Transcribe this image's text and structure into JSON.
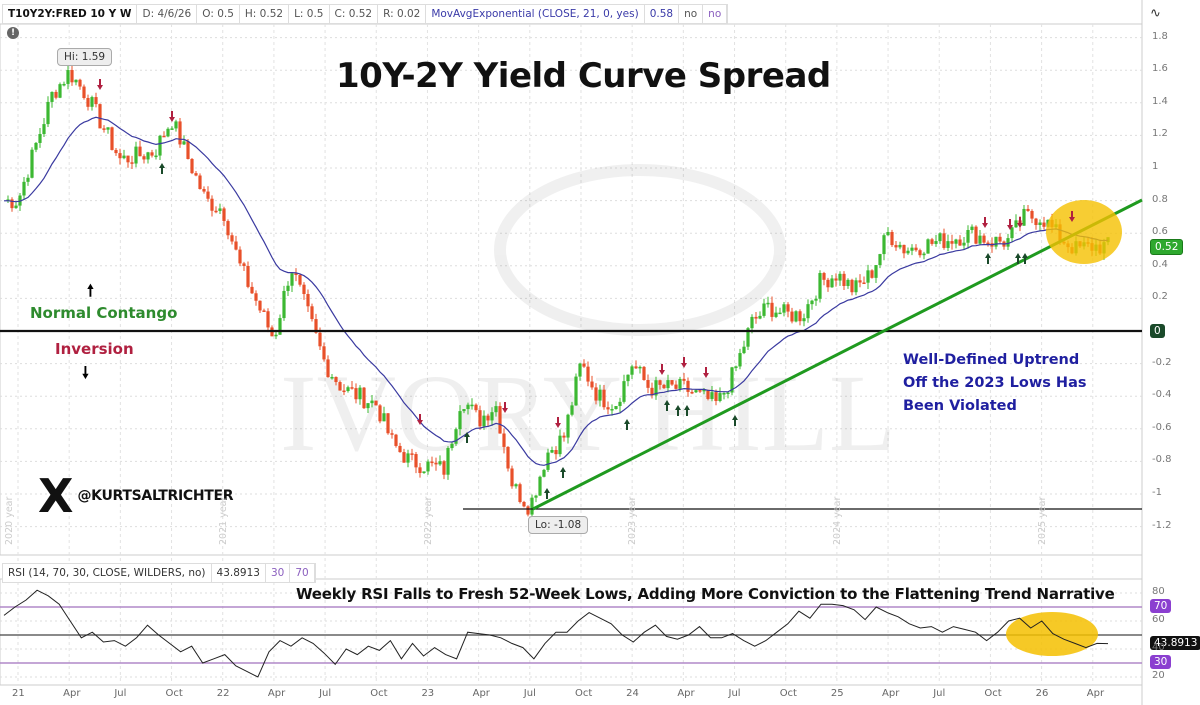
{
  "header": {
    "symbol": "T10Y2Y:FRED 10 Y W",
    "date": "D: 4/6/26",
    "open": "O: 0.5",
    "high": "H: 0.52",
    "low": "L: 0.5",
    "close": "C: 0.52",
    "range": "R: 0.02",
    "study": "MovAvgExponential (CLOSE, 21, 0, yes)",
    "study_value": "0.58",
    "flag1": "no",
    "flag2": "no"
  },
  "rsi_header": {
    "study": "RSI (14, 70, 30, CLOSE, WILDERS, no)",
    "value": "43.8913",
    "os": "30",
    "ob": "70"
  },
  "annotations": {
    "title": "10Y-2Y Yield Curve Spread",
    "normal": "Normal Contango",
    "inversion": "Inversion",
    "uptrend_line1": "Well-Defined Uptrend",
    "uptrend_line2": "Off the 2023 Lows Has",
    "uptrend_line3": "Been Violated",
    "rsi_note": "Weekly RSI Falls to Fresh 52-Week Lows, Adding More Conviction to the Flattening Trend Narrative",
    "handle": "@KURTSALTRICHTER",
    "x_logo": "X",
    "hi_label": "Hi: 1.59",
    "lo_label": "Lo: -1.08",
    "last_price": "0.52",
    "zero_tag": "0",
    "rsi_last": "43.8913",
    "rsi_ob_tag": "70",
    "rsi_os_tag": "30"
  },
  "colors": {
    "up": "#3cb832",
    "down": "#e8502a",
    "ema": "#3a3aa0",
    "trend": "#1f9a1f",
    "highlight": "#f5c000",
    "rsi_band": "#b088c8"
  },
  "chart_data": [
    {
      "type": "candlestick",
      "title": "10Y-2Y Yield Curve Spread",
      "symbol": "T10Y2Y:FRED",
      "interval": "Weekly",
      "ylim": [
        -1.3,
        1.9
      ],
      "y_ticks": [
        1.8,
        1.6,
        1.4,
        1.2,
        1,
        0.8,
        0.6,
        0.4,
        0.2,
        0,
        -0.2,
        -0.4,
        -0.6,
        -0.8,
        -1,
        -1.2
      ],
      "x_ticks": [
        "21",
        "Apr",
        "Jul",
        "Oct",
        "22",
        "Apr",
        "Jul",
        "Oct",
        "23",
        "Apr",
        "Jul",
        "Oct",
        "24",
        "Apr",
        "Jul",
        "Oct",
        "25",
        "Apr",
        "Jul",
        "Oct",
        "26",
        "Apr"
      ],
      "year_markers": [
        "2020 year",
        "2021 year",
        "2022 year",
        "2023 year",
        "2024 year",
        "2025 year"
      ],
      "approx_close_path": [
        {
          "t": "2021-01",
          "v": 0.8
        },
        {
          "t": "2021-03",
          "v": 1.45
        },
        {
          "t": "2021-04",
          "v": 1.59
        },
        {
          "t": "2021-05",
          "v": 1.45
        },
        {
          "t": "2021-07",
          "v": 1.05
        },
        {
          "t": "2021-09",
          "v": 1.1
        },
        {
          "t": "2021-10",
          "v": 1.3
        },
        {
          "t": "2021-11",
          "v": 1.05
        },
        {
          "t": "2021-12",
          "v": 0.8
        },
        {
          "t": "2022-01",
          "v": 0.75
        },
        {
          "t": "2022-02",
          "v": 0.4
        },
        {
          "t": "2022-04",
          "v": -0.05
        },
        {
          "t": "2022-05",
          "v": 0.4
        },
        {
          "t": "2022-06",
          "v": 0.1
        },
        {
          "t": "2022-07",
          "v": -0.2
        },
        {
          "t": "2022-08",
          "v": -0.35
        },
        {
          "t": "2022-10",
          "v": -0.45
        },
        {
          "t": "2022-11",
          "v": -0.7
        },
        {
          "t": "2022-12",
          "v": -0.8
        },
        {
          "t": "2023-02",
          "v": -0.85
        },
        {
          "t": "2023-03",
          "v": -0.4
        },
        {
          "t": "2023-04",
          "v": -0.55
        },
        {
          "t": "2023-05",
          "v": -0.45
        },
        {
          "t": "2023-06",
          "v": -0.95
        },
        {
          "t": "2023-07",
          "v": -1.08
        },
        {
          "t": "2023-08",
          "v": -0.75
        },
        {
          "t": "2023-09",
          "v": -0.65
        },
        {
          "t": "2023-10",
          "v": -0.2
        },
        {
          "t": "2023-11",
          "v": -0.4
        },
        {
          "t": "2023-12",
          "v": -0.45
        },
        {
          "t": "2024-01",
          "v": -0.2
        },
        {
          "t": "2024-02",
          "v": -0.35
        },
        {
          "t": "2024-04",
          "v": -0.35
        },
        {
          "t": "2024-06",
          "v": -0.45
        },
        {
          "t": "2024-07",
          "v": -0.25
        },
        {
          "t": "2024-08",
          "v": 0.05
        },
        {
          "t": "2024-09",
          "v": 0.15
        },
        {
          "t": "2024-10",
          "v": 0.1
        },
        {
          "t": "2024-11",
          "v": 0.1
        },
        {
          "t": "2024-12",
          "v": 0.3
        },
        {
          "t": "2025-01",
          "v": 0.35
        },
        {
          "t": "2025-02",
          "v": 0.25
        },
        {
          "t": "2025-03",
          "v": 0.35
        },
        {
          "t": "2025-04",
          "v": 0.6
        },
        {
          "t": "2025-05",
          "v": 0.5
        },
        {
          "t": "2025-07",
          "v": 0.55
        },
        {
          "t": "2025-09",
          "v": 0.6
        },
        {
          "t": "2025-10",
          "v": 0.55
        },
        {
          "t": "2025-11",
          "v": 0.55
        },
        {
          "t": "2025-12",
          "v": 0.7
        },
        {
          "t": "2026-01",
          "v": 0.7
        },
        {
          "t": "2026-02",
          "v": 0.58
        },
        {
          "t": "2026-03",
          "v": 0.5
        },
        {
          "t": "2026-04",
          "v": 0.52
        }
      ],
      "hi": 1.59,
      "lo": -1.08,
      "last": 0.52,
      "ema21_last": 0.58,
      "horizontal_lines": [
        0,
        -1.08
      ],
      "trendline": {
        "from": {
          "t": "2023-07",
          "v": -1.08
        },
        "to": {
          "t": "2026-04",
          "v": 0.8
        }
      }
    },
    {
      "type": "line",
      "title": "RSI (14, 70, 30, CLOSE, WILDERS, no)",
      "ylim": [
        15,
        85
      ],
      "y_ticks": [
        80,
        60,
        40,
        20
      ],
      "bands": [
        70,
        30
      ],
      "midline": 50,
      "last": 43.8913,
      "approx_values": [
        64,
        70,
        75,
        82,
        78,
        72,
        60,
        48,
        52,
        45,
        46,
        42,
        48,
        57,
        50,
        44,
        38,
        42,
        30,
        33,
        36,
        28,
        24,
        20,
        38,
        46,
        42,
        48,
        44,
        37,
        29,
        40,
        36,
        42,
        39,
        46,
        33,
        44,
        35,
        41,
        36,
        33,
        52,
        51,
        50,
        48,
        44,
        41,
        33,
        44,
        52,
        52,
        60,
        66,
        62,
        58,
        50,
        45,
        52,
        57,
        49,
        47,
        50,
        56,
        48,
        48,
        51,
        46,
        42,
        46,
        52,
        58,
        67,
        62,
        72,
        72,
        71,
        68,
        61,
        70,
        66,
        63,
        58,
        55,
        56,
        52,
        56,
        54,
        52,
        46,
        52,
        60,
        62,
        55,
        60,
        51,
        47,
        44,
        41,
        44,
        43.89
      ]
    }
  ]
}
